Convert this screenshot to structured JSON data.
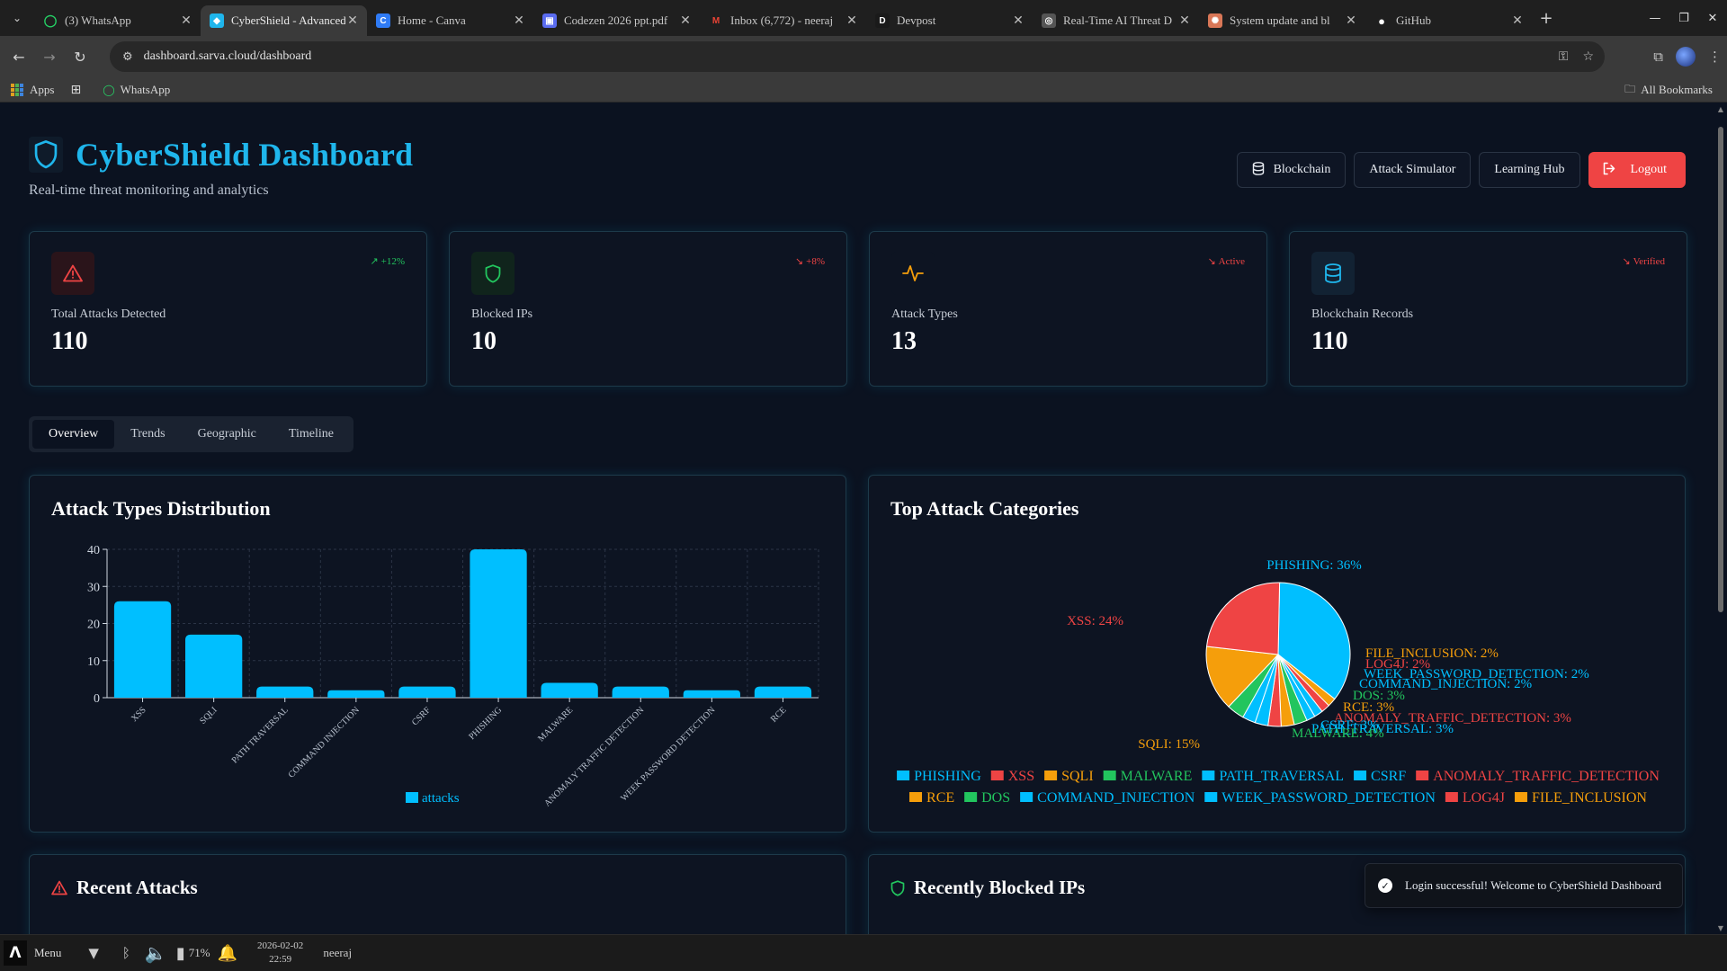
{
  "browser": {
    "tabs": [
      {
        "title": "(3) WhatsApp",
        "icon": "whatsapp-icon",
        "active": false
      },
      {
        "title": "CyberShield - Advanced",
        "icon": "cybershield-icon",
        "active": true
      },
      {
        "title": "Home - Canva",
        "icon": "canva-icon",
        "active": false
      },
      {
        "title": "Codezen 2026 ppt.pdf",
        "icon": "pdf-icon",
        "active": false
      },
      {
        "title": "Inbox (6,772) - neeraj",
        "icon": "gmail-icon",
        "active": false
      },
      {
        "title": "Devpost",
        "icon": "devpost-icon",
        "active": false
      },
      {
        "title": "Real-Time AI Threat D",
        "icon": "web-icon",
        "active": false
      },
      {
        "title": "System update and bl",
        "icon": "claude-icon",
        "active": false
      },
      {
        "title": "GitHub",
        "icon": "github-icon",
        "active": false
      }
    ],
    "url": "dashboard.sarva.cloud/dashboard",
    "bookmarks": [
      {
        "label": "Apps",
        "icon": "apps-icon"
      },
      {
        "label": "",
        "icon": "grid-icon"
      },
      {
        "label": "WhatsApp",
        "icon": "whatsapp-icon"
      }
    ],
    "all_bookmarks": "All Bookmarks"
  },
  "header": {
    "title": "CyberShield Dashboard",
    "subtitle": "Real-time threat monitoring and analytics",
    "actions": {
      "blockchain": "Blockchain",
      "simulator": "Attack Simulator",
      "learning": "Learning Hub",
      "logout": "Logout"
    }
  },
  "stats": [
    {
      "label": "Total Attacks Detected",
      "value": "110",
      "trend": "+12%",
      "trend_dir": "up",
      "trend_color": "#22c55e",
      "icon": "alert-triangle-icon",
      "icon_color": "#ef4444",
      "icon_bg": "#2a141a"
    },
    {
      "label": "Blocked IPs",
      "value": "10",
      "trend": "+8%",
      "trend_dir": "down",
      "trend_color": "#ef4444",
      "icon": "shield-icon",
      "icon_color": "#22c55e",
      "icon_bg": "#10241c"
    },
    {
      "label": "Attack Types",
      "value": "13",
      "trend": "Active",
      "trend_dir": "down",
      "trend_color": "#ef4444",
      "icon": "activity-icon",
      "icon_color": "#f59e0b",
      "icon_bg": "#0d1422"
    },
    {
      "label": "Blockchain Records",
      "value": "110",
      "trend": "Verified",
      "trend_dir": "down",
      "trend_color": "#ef4444",
      "icon": "database-icon",
      "icon_color": "#1fb6ec",
      "icon_bg": "#122233"
    }
  ],
  "view_tabs": [
    "Overview",
    "Trends",
    "Geographic",
    "Timeline"
  ],
  "active_tab": "Overview",
  "panels": {
    "bar_title": "Attack Types Distribution",
    "pie_title": "Top Attack Categories",
    "recent_attacks": "Recent Attacks",
    "blocked_ips": "Recently Blocked IPs"
  },
  "chart_data": [
    {
      "type": "bar",
      "title": "Attack Types Distribution",
      "categories": [
        "XSS",
        "SQLI",
        "PATH TRAVERSAL",
        "COMMAND INJECTION",
        "CSRF",
        "PHISHING",
        "MALWARE",
        "ANOMALY TRAFFIC DETECTION",
        "WEEK PASSWORD DETECTION",
        "RCE"
      ],
      "series": [
        {
          "name": "attacks",
          "values": [
            26,
            17,
            3,
            2,
            3,
            40,
            4,
            3,
            2,
            3
          ]
        }
      ],
      "ylim": [
        0,
        40
      ],
      "yticks": [
        0,
        10,
        20,
        30,
        40
      ],
      "grid": true,
      "legend": "bottom",
      "color": "#00bfff"
    },
    {
      "type": "pie",
      "title": "Top Attack Categories",
      "slices": [
        {
          "label": "PHISHING",
          "value": 36,
          "color": "#00bfff",
          "text": "PHISHING: 36%"
        },
        {
          "label": "FILE_INCLUSION",
          "value": 2,
          "color": "#f59e0b",
          "text": "FILE_INCLUSION: 2%"
        },
        {
          "label": "LOG4J",
          "value": 2,
          "color": "#ef4444",
          "text": "LOG4J: 2%"
        },
        {
          "label": "WEEK_PASSWORD_DETECTION",
          "value": 2,
          "color": "#00bfff",
          "text": "WEEK_PASSWORD_DETECTION: 2%"
        },
        {
          "label": "COMMAND_INJECTION",
          "value": 2,
          "color": "#00bfff",
          "text": "COMMAND_INJECTION: 2%"
        },
        {
          "label": "DOS",
          "value": 3,
          "color": "#22c55e",
          "text": "DOS: 3%"
        },
        {
          "label": "RCE",
          "value": 3,
          "color": "#f59e0b",
          "text": "RCE: 3%"
        },
        {
          "label": "ANOMALY_TRAFFIC_DETECTION",
          "value": 3,
          "color": "#ef4444",
          "text": "ANOMALY_TRAFFIC_DETECTION: 3%"
        },
        {
          "label": "CSRF",
          "value": 3,
          "color": "#00bfff",
          "text": "CSRF: 3%"
        },
        {
          "label": "PATH_TRAVERSAL",
          "value": 3,
          "color": "#00bfff",
          "text": "PATH_TRAVERSAL: 3%"
        },
        {
          "label": "MALWARE",
          "value": 4,
          "color": "#22c55e",
          "text": "MALWARE: 4%"
        },
        {
          "label": "SQLI",
          "value": 15,
          "color": "#f59e0b",
          "text": "SQLI: 15%"
        },
        {
          "label": "XSS",
          "value": 24,
          "color": "#ef4444",
          "text": "XSS: 24%"
        }
      ],
      "legend_order": [
        "PHISHING",
        "XSS",
        "SQLI",
        "MALWARE",
        "PATH_TRAVERSAL",
        "CSRF",
        "ANOMALY_TRAFFIC_DETECTION",
        "RCE",
        "DOS",
        "COMMAND_INJECTION",
        "WEEK_PASSWORD_DETECTION",
        "LOG4J",
        "FILE_INCLUSION"
      ],
      "legend": "bottom"
    }
  ],
  "toast": "Login successful! Welcome to CyberShield Dashboard",
  "taskbar": {
    "menu": "Menu",
    "battery": "71%",
    "date": "2026-02-02",
    "time": "22:59",
    "user": "neeraj"
  }
}
